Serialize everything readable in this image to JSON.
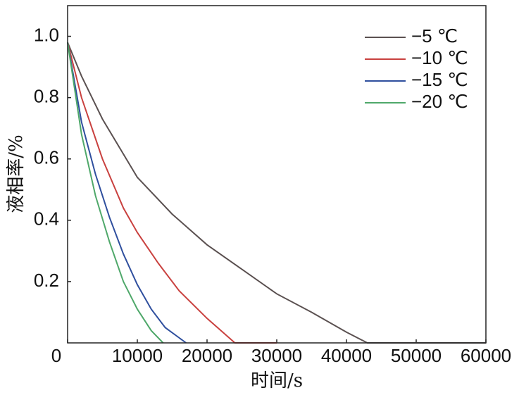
{
  "chart_data": {
    "type": "line",
    "xlabel": "时间/s",
    "ylabel": "液相率/%",
    "xlim": [
      0,
      60000
    ],
    "ylim": [
      0,
      1.1
    ],
    "xticks": [
      0,
      10000,
      20000,
      30000,
      40000,
      50000,
      60000
    ],
    "yticks": [
      0.2,
      0.4,
      0.6,
      0.8,
      {
        "value": 1,
        "label": "1.0"
      }
    ],
    "legend": "upper right",
    "series": [
      {
        "name": "−5 ℃",
        "color": "#5b5151",
        "x": [
          0,
          2000,
          5000,
          10000,
          15000,
          20000,
          25000,
          30000,
          35000,
          40000,
          43000,
          60000
        ],
        "values": [
          0.98,
          0.87,
          0.73,
          0.54,
          0.42,
          0.32,
          0.24,
          0.16,
          0.1,
          0.035,
          0,
          0
        ]
      },
      {
        "name": "−10 ℃",
        "color": "#c9413f",
        "x": [
          0,
          2000,
          5000,
          8000,
          10000,
          13000,
          16000,
          20000,
          24000,
          30000
        ],
        "values": [
          0.98,
          0.8,
          0.6,
          0.44,
          0.36,
          0.26,
          0.17,
          0.08,
          0,
          0
        ]
      },
      {
        "name": "−15 ℃",
        "color": "#2f4f9e",
        "x": [
          0,
          2000,
          4000,
          6000,
          8000,
          10000,
          12000,
          14000,
          17000
        ],
        "values": [
          0.98,
          0.72,
          0.55,
          0.41,
          0.29,
          0.19,
          0.11,
          0.05,
          0
        ]
      },
      {
        "name": "−20 ℃",
        "color": "#4fa86a",
        "x": [
          0,
          2000,
          4000,
          6000,
          8000,
          10000,
          12000,
          13700
        ],
        "values": [
          0.98,
          0.68,
          0.48,
          0.33,
          0.2,
          0.11,
          0.04,
          0
        ]
      }
    ]
  }
}
